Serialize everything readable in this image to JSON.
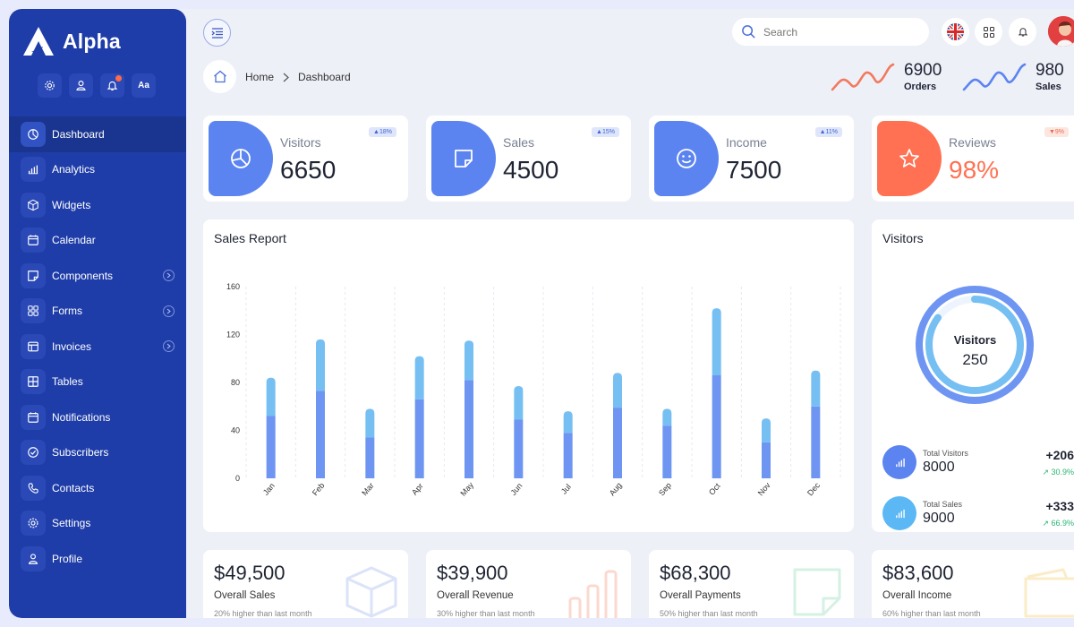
{
  "brand": {
    "name": "Alpha"
  },
  "quick_actions": [
    {
      "icon": "gear-icon"
    },
    {
      "icon": "user-icon"
    },
    {
      "icon": "bell-icon"
    },
    {
      "icon": "font-icon",
      "label": "Aa"
    }
  ],
  "nav": [
    {
      "label": "Dashboard",
      "icon": "pie-icon",
      "active": true
    },
    {
      "label": "Analytics",
      "icon": "bar-chart-icon"
    },
    {
      "label": "Widgets",
      "icon": "cube-icon"
    },
    {
      "label": "Calendar",
      "icon": "calendar-icon"
    },
    {
      "label": "Components",
      "icon": "sticky-note-icon",
      "expandable": true
    },
    {
      "label": "Forms",
      "icon": "grid-icon",
      "expandable": true
    },
    {
      "label": "Invoices",
      "icon": "invoice-icon",
      "expandable": true
    },
    {
      "label": "Tables",
      "icon": "table-icon"
    },
    {
      "label": "Notifications",
      "icon": "bell-icon"
    },
    {
      "label": "Subscribers",
      "icon": "check-circle-icon"
    },
    {
      "label": "Contacts",
      "icon": "phone-icon"
    },
    {
      "label": "Settings",
      "icon": "gear-icon"
    },
    {
      "label": "Profile",
      "icon": "user-icon"
    }
  ],
  "header": {
    "search_placeholder": "Search",
    "breadcrumb": {
      "home": "Home",
      "current": "Dashboard"
    },
    "mini_stats": [
      {
        "value": "6900",
        "label": "Orders",
        "color": "#f2795c"
      },
      {
        "value": "980",
        "label": "Sales",
        "color": "#5b84f0"
      }
    ]
  },
  "stats": [
    {
      "label": "Visitors",
      "value": "6650",
      "badge": "▲18%",
      "trend": "up",
      "color": "#5b84f0",
      "icon": "pie-icon"
    },
    {
      "label": "Sales",
      "value": "4500",
      "badge": "▲15%",
      "trend": "up",
      "color": "#5b84f0",
      "icon": "sticky-note-icon"
    },
    {
      "label": "Income",
      "value": "7500",
      "badge": "▲11%",
      "trend": "up",
      "color": "#5b84f0",
      "icon": "smile-icon"
    },
    {
      "label": "Reviews",
      "value": "98%",
      "badge": "▼9%",
      "trend": "down",
      "color": "#ff7152",
      "icon": "star-icon"
    }
  ],
  "sales_report": {
    "title": "Sales Report"
  },
  "chart_data": {
    "type": "bar",
    "stacked": true,
    "title": "Sales Report",
    "categories": [
      "Jan",
      "Feb",
      "Mar",
      "Apr",
      "May",
      "Jun",
      "Jul",
      "Aug",
      "Sep",
      "Oct",
      "Nov",
      "Dec"
    ],
    "series": [
      {
        "values": [
          52,
          73,
          34,
          66,
          82,
          49,
          38,
          59,
          44,
          86,
          30,
          60
        ],
        "color": "#6e95f2"
      },
      {
        "values": [
          32,
          43,
          24,
          36,
          33,
          28,
          18,
          29,
          14,
          56,
          20,
          30
        ],
        "color": "#76bff2"
      }
    ],
    "yticks": [
      0,
      40,
      80,
      120,
      160
    ],
    "ylim": [
      0,
      160
    ],
    "grid": "vertical-dashed"
  },
  "visitors_panel": {
    "title": "Visitors",
    "donut_label": "Visitors",
    "donut_value": "250",
    "donut_outer_fraction": 1.0,
    "donut_inner_fraction": 0.85,
    "rows": [
      {
        "label": "Total Visitors",
        "value": "8000",
        "delta": "+206",
        "pct": "↗ 30.9%",
        "color": "#5b84f0"
      },
      {
        "label": "Total Sales",
        "value": "9000",
        "delta": "+333",
        "pct": "↗ 66.9%",
        "color": "#5bb8f5"
      }
    ]
  },
  "summary_cards": [
    {
      "amount": "$49,500",
      "label": "Overall Sales",
      "note": "20% higher than last month",
      "icon": "box-icon",
      "color": "#dbe3f8"
    },
    {
      "amount": "$39,900",
      "label": "Overall Revenue",
      "note": "30% higher than last month",
      "icon": "bar-chart-icon",
      "color": "#fbd9cf"
    },
    {
      "amount": "$68,300",
      "label": "Overall Payments",
      "note": "50% higher than last month",
      "icon": "sticky-note-icon",
      "color": "#d5f1e3"
    },
    {
      "amount": "$83,600",
      "label": "Overall Income",
      "note": "60% higher than last month",
      "icon": "wallet-icon",
      "color": "#fbecc8"
    }
  ]
}
